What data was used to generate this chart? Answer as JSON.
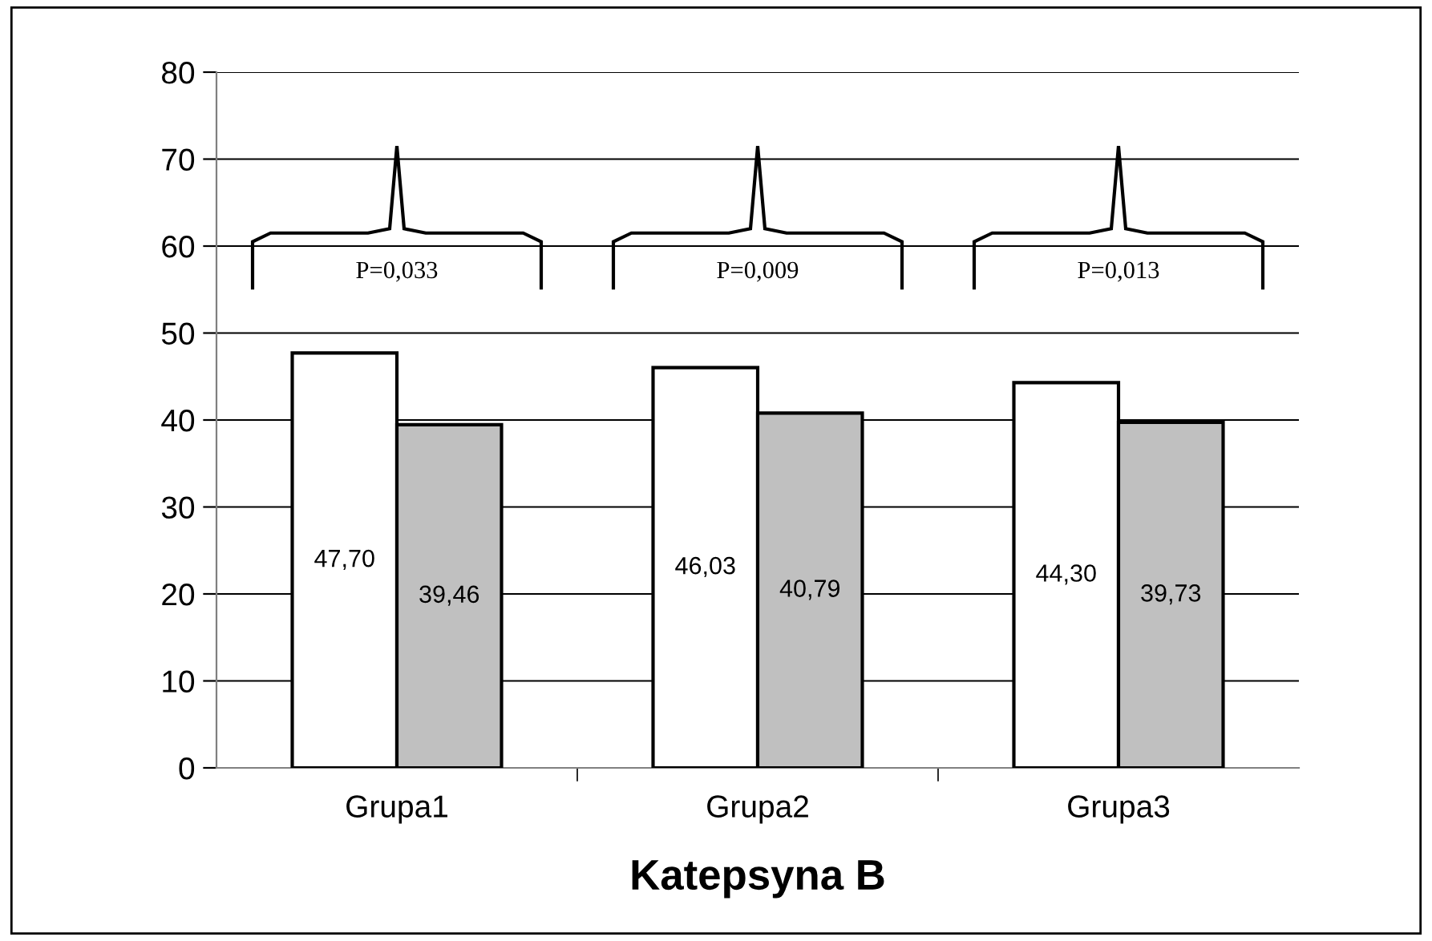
{
  "chart_data": {
    "type": "bar",
    "title": "Katepsyna B",
    "categories": [
      "Grupa1",
      "Grupa2",
      "Grupa3"
    ],
    "series": [
      {
        "color": "#ffffff",
        "values": [
          47.7,
          46.03,
          44.3
        ],
        "value_labels": [
          "47,70",
          "46,03",
          "44,30"
        ]
      },
      {
        "color": "#c0c0c0",
        "values": [
          39.46,
          40.79,
          39.73
        ],
        "value_labels": [
          "39,46",
          "40,79",
          "39,73"
        ]
      }
    ],
    "ylim": [
      0,
      80
    ],
    "yticks": [
      0,
      10,
      20,
      30,
      40,
      50,
      60,
      70,
      80
    ],
    "grid": "y",
    "legend": false,
    "annotations": [
      "P=0,033",
      "P=0,009",
      "P=0,013"
    ]
  }
}
